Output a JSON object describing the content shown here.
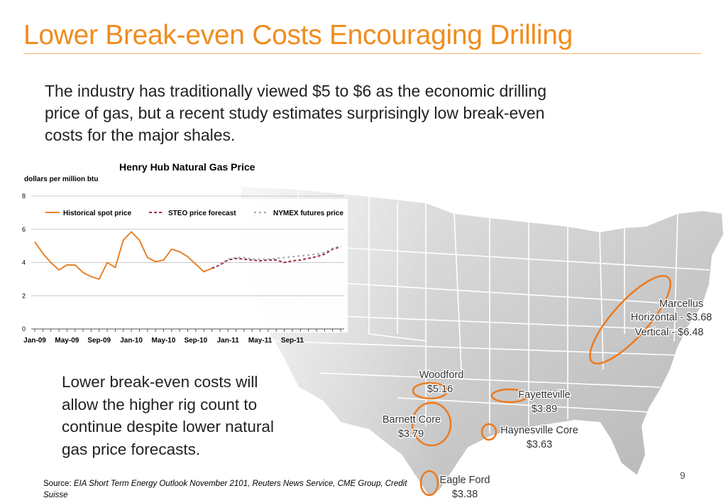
{
  "slide": {
    "title": "Lower Break-even Costs Encouraging Drilling",
    "intro": "The industry has traditionally viewed $5 to $6 as the economic drilling price of gas, but a recent study estimates surprisingly low break-even costs for the major shales.",
    "body": "Lower break-even costs will allow the higher rig count to continue despite lower natural gas price forecasts.",
    "source_label": "Source:",
    "source_text": "EIA Short Term Energy Outlook November 2101, Reuters News Service, CME Group, Credit Suisse",
    "page_number": "9",
    "accent_color": "#f08c1e"
  },
  "chart_data": {
    "type": "line",
    "title": "Henry Hub Natural Gas Price",
    "ylabel": "dollars per million btu",
    "ylim": [
      0,
      8
    ],
    "yticks": [
      "0",
      "2",
      "4",
      "6",
      "8"
    ],
    "xtick_labels": [
      "Jan-09",
      "May-09",
      "Sep-09",
      "Jan-10",
      "May-10",
      "Sep-10",
      "Jan-11",
      "May-11",
      "Sep-11"
    ],
    "grid": true,
    "legend_position": "top",
    "series": [
      {
        "name": "Historical spot price",
        "color": "#e8822a",
        "style": "solid",
        "values": [
          5.25,
          4.55,
          4.0,
          3.55,
          3.85,
          3.85,
          3.4,
          3.15,
          3.0,
          4.0,
          3.7,
          5.35,
          5.85,
          5.35,
          4.3,
          4.05,
          4.15,
          4.8,
          4.65,
          4.35,
          3.9,
          3.45,
          3.65
        ]
      },
      {
        "name": "STEO price forecast",
        "color": "#9b2a3e",
        "style": "dashed",
        "values": [
          null,
          null,
          null,
          null,
          null,
          null,
          null,
          null,
          null,
          null,
          null,
          null,
          null,
          null,
          null,
          null,
          null,
          null,
          null,
          null,
          null,
          null,
          3.65,
          3.85,
          4.15,
          4.25,
          4.2,
          4.15,
          4.1,
          4.15,
          4.15,
          4.0,
          4.1,
          4.15,
          4.25,
          4.35,
          4.5,
          4.8,
          4.95
        ]
      },
      {
        "name": "NYMEX futures price",
        "color": "#9aa6ad",
        "style": "dashed",
        "values": [
          null,
          null,
          null,
          null,
          null,
          null,
          null,
          null,
          null,
          null,
          null,
          null,
          null,
          null,
          null,
          null,
          null,
          null,
          null,
          null,
          null,
          null,
          null,
          3.9,
          4.2,
          4.3,
          4.3,
          4.2,
          4.2,
          4.2,
          4.25,
          4.3,
          4.35,
          4.4,
          4.45,
          4.5,
          4.6,
          4.85,
          5.0
        ]
      }
    ]
  },
  "map": {
    "plays": [
      {
        "name": "Marcellus",
        "lines": [
          "Marcellus",
          "Horizontal - $3.68",
          "Vertical - $6.48"
        ]
      },
      {
        "name": "Woodford",
        "lines": [
          "Woodford",
          "$5.16"
        ]
      },
      {
        "name": "Fayetteville",
        "lines": [
          "Fayetteville",
          "$3.89"
        ]
      },
      {
        "name": "Barnett Core",
        "lines": [
          "Barnett Core",
          "$3.79"
        ]
      },
      {
        "name": "Haynesville Core",
        "lines": [
          "Haynesville Core",
          "$3.63"
        ]
      },
      {
        "name": "Eagle Ford",
        "lines": [
          "Eagle Ford",
          "$3.38"
        ]
      }
    ]
  }
}
